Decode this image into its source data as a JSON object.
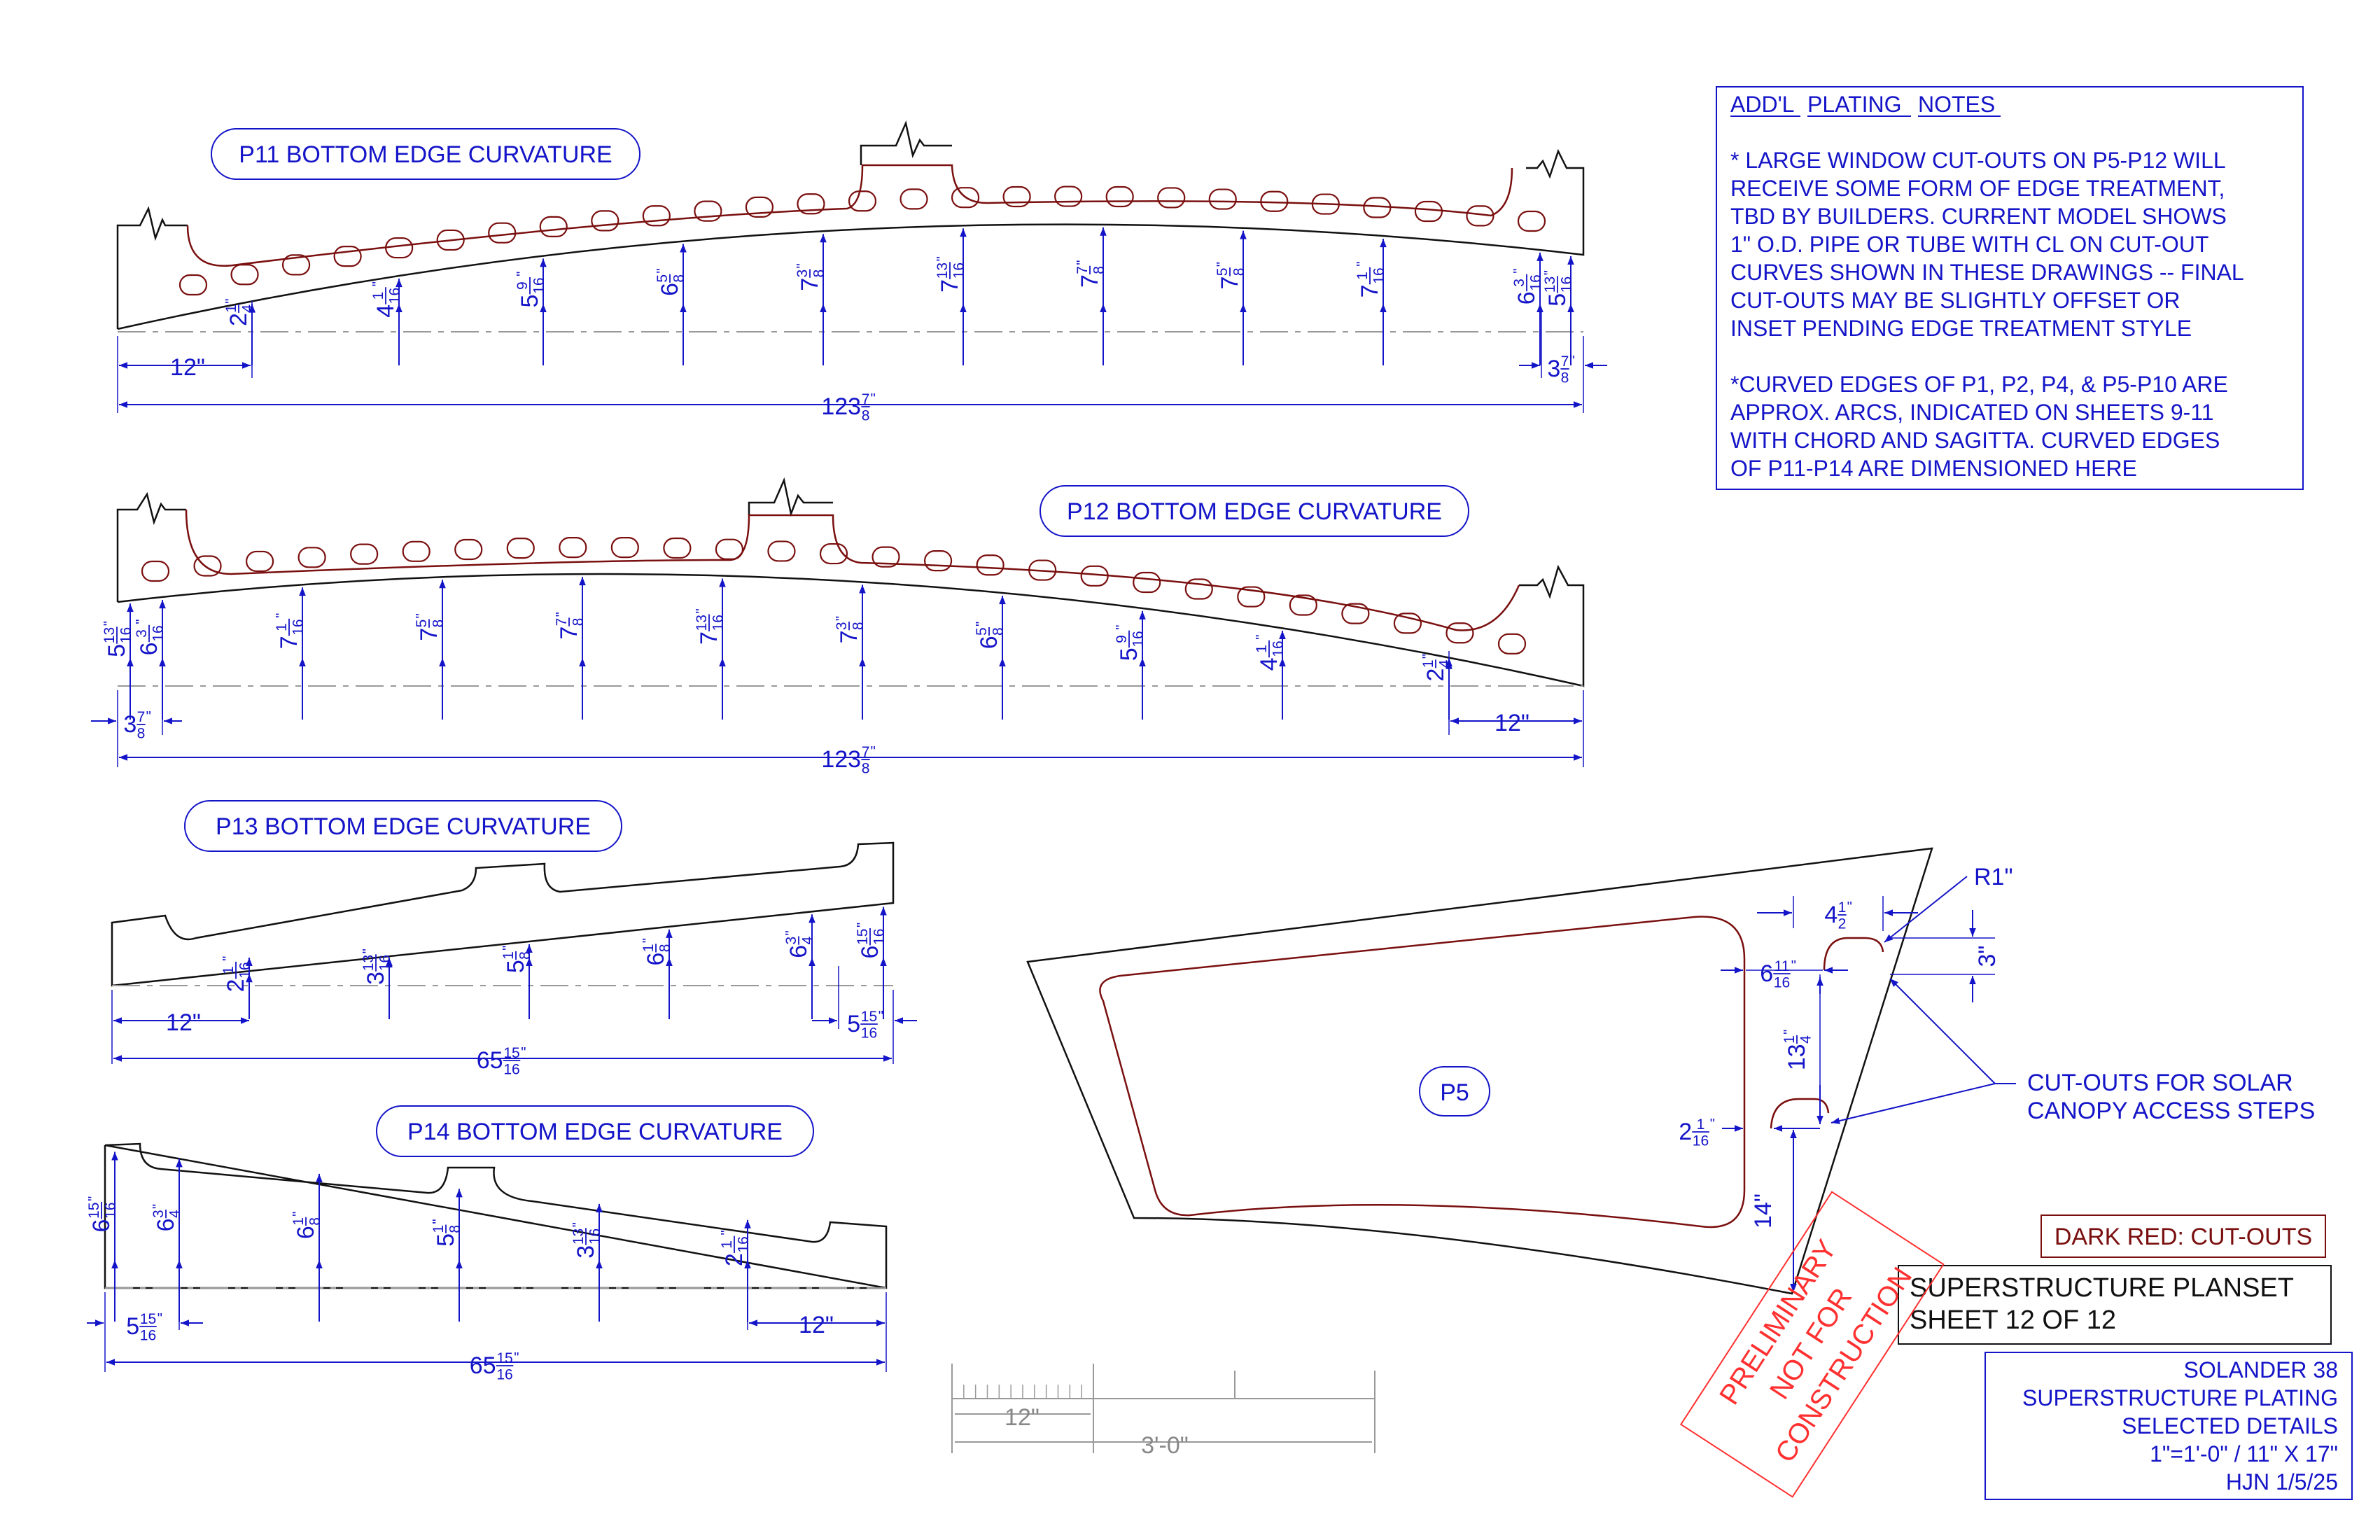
{
  "colors": {
    "dimension": "#1414c8",
    "cutout": "#7a0f0f",
    "outline": "#111111",
    "stamp": "#ff3030"
  },
  "notes": {
    "heading_a": "ADD'L",
    "heading_b": "PLATING",
    "heading_c": "NOTES",
    "lines": [
      "* LARGE WINDOW CUT-OUTS ON P5-P12 WILL",
      "RECEIVE SOME FORM OF EDGE TREATMENT,",
      "TBD BY BUILDERS. CURRENT MODEL SHOWS",
      "1\" O.D. PIPE OR TUBE WITH CL ON CUT-OUT",
      "CURVES SHOWN IN THESE DRAWINGS -- FINAL",
      "CUT-OUTS MAY BE SLIGHTLY OFFSET OR",
      "INSET PENDING EDGE TREATMENT STYLE",
      "",
      "*CURVED EDGES OF P1, P2, P4, & P5-P10 ARE",
      "APPROX. ARCS, INDICATED ON SHEETS 9-11",
      "WITH CHORD AND SAGITTA. CURVED EDGES",
      "OF P11-P14 ARE DIMENSIONED HERE"
    ]
  },
  "titles": {
    "p11": "P11 BOTTOM EDGE CURVATURE",
    "p12": "P12 BOTTOM EDGE CURVATURE",
    "p13": "P13 BOTTOM EDGE CURVATURE",
    "p14": "P14 BOTTOM EDGE CURVATURE",
    "p5": "P5"
  },
  "p11": {
    "heights": [
      {
        "w": "2",
        "n": "1",
        "d": "4"
      },
      {
        "w": "4",
        "n": "1",
        "d": "16"
      },
      {
        "w": "5",
        "n": "9",
        "d": "16"
      },
      {
        "w": "6",
        "n": "5",
        "d": "8"
      },
      {
        "w": "7",
        "n": "3",
        "d": "8"
      },
      {
        "w": "7",
        "n": "13",
        "d": "16"
      },
      {
        "w": "7",
        "n": "7",
        "d": "8"
      },
      {
        "w": "7",
        "n": "5",
        "d": "8"
      },
      {
        "w": "7",
        "n": "1",
        "d": "16"
      },
      {
        "w": "6",
        "n": "3",
        "d": "16"
      },
      {
        "w": "5",
        "n": "13",
        "d": "16"
      }
    ],
    "left_offset": "12\"",
    "right_offset": {
      "w": "3",
      "n": "7",
      "d": "8"
    },
    "overall": {
      "w": "123",
      "n": "7",
      "d": "8"
    }
  },
  "p12": {
    "heights": [
      {
        "w": "5",
        "n": "13",
        "d": "16"
      },
      {
        "w": "6",
        "n": "3",
        "d": "16"
      },
      {
        "w": "7",
        "n": "1",
        "d": "16"
      },
      {
        "w": "7",
        "n": "5",
        "d": "8"
      },
      {
        "w": "7",
        "n": "7",
        "d": "8"
      },
      {
        "w": "7",
        "n": "13",
        "d": "16"
      },
      {
        "w": "7",
        "n": "3",
        "d": "8"
      },
      {
        "w": "6",
        "n": "5",
        "d": "8"
      },
      {
        "w": "5",
        "n": "9",
        "d": "16"
      },
      {
        "w": "4",
        "n": "1",
        "d": "16"
      },
      {
        "w": "2",
        "n": "1",
        "d": "4"
      }
    ],
    "left_offset": {
      "w": "3",
      "n": "7",
      "d": "8"
    },
    "right_offset": "12\"",
    "overall": {
      "w": "123",
      "n": "7",
      "d": "8"
    }
  },
  "p13": {
    "heights": [
      {
        "w": "2",
        "n": "1",
        "d": "16"
      },
      {
        "w": "3",
        "n": "13",
        "d": "16"
      },
      {
        "w": "5",
        "n": "1",
        "d": "8"
      },
      {
        "w": "6",
        "n": "1",
        "d": "8"
      },
      {
        "w": "6",
        "n": "3",
        "d": "4"
      },
      {
        "w": "6",
        "n": "15",
        "d": "16"
      }
    ],
    "left_offset": "12\"",
    "right_offset": {
      "w": "5",
      "n": "15",
      "d": "16"
    },
    "overall": {
      "w": "65",
      "n": "15",
      "d": "16"
    }
  },
  "p14": {
    "heights": [
      {
        "w": "6",
        "n": "15",
        "d": "16"
      },
      {
        "w": "6",
        "n": "3",
        "d": "4"
      },
      {
        "w": "6",
        "n": "1",
        "d": "8"
      },
      {
        "w": "5",
        "n": "1",
        "d": "8"
      },
      {
        "w": "3",
        "n": "13",
        "d": "16"
      },
      {
        "w": "2",
        "n": "1",
        "d": "16"
      }
    ],
    "left_offset": {
      "w": "5",
      "n": "15",
      "d": "16"
    },
    "right_offset": "12\"",
    "overall": {
      "w": "65",
      "n": "15",
      "d": "16"
    }
  },
  "p5": {
    "radius": "R1\"",
    "step_width": {
      "w": "4",
      "n": "1",
      "d": "2"
    },
    "step_height": "3\"",
    "inset_upper": {
      "w": "6",
      "n": "11",
      "d": "16"
    },
    "step_spacing": {
      "w": "13",
      "n": "1",
      "d": "4"
    },
    "inset_lower": {
      "w": "2",
      "n": "1",
      "d": "16"
    },
    "bottom_offset": "14\"",
    "cutout_note_1": "CUT-OUTS FOR SOLAR",
    "cutout_note_2": "CANOPY ACCESS STEPS"
  },
  "scale_bar": {
    "short": "12\"",
    "long": "3'-0\""
  },
  "legend": "DARK RED: CUT-OUTS",
  "stamp": [
    "PRELIMINARY",
    "NOT FOR",
    "CONSTRUCTION"
  ],
  "planset": {
    "line1": "SUPERSTRUCTURE PLANSET",
    "line2": "SHEET 12 OF 12"
  },
  "title_block": [
    "SOLANDER 38",
    "SUPERSTRUCTURE PLATING",
    "SELECTED DETAILS",
    "1\"=1'-0\" / 11\" X 17\"",
    "HJN 1/5/25"
  ]
}
